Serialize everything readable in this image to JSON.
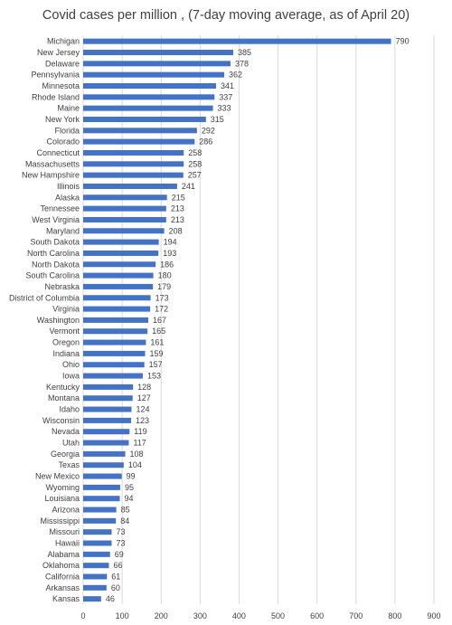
{
  "chart_data": {
    "type": "bar",
    "orientation": "horizontal",
    "title": "Covid cases per million , (7-day moving average, as of April 20)",
    "xlabel": "",
    "ylabel": "",
    "xlim": [
      0,
      900
    ],
    "xticks": [
      0,
      100,
      200,
      300,
      400,
      500,
      600,
      700,
      800,
      900
    ],
    "grid": "vertical",
    "bar_color": "#4472C4",
    "categories": [
      "Michigan",
      "New Jersey",
      "Delaware",
      "Pennsylvania",
      "Minnesota",
      "Rhode Island",
      "Maine",
      "New York",
      "Florida",
      "Colorado",
      "Connecticut",
      "Massachusetts",
      "New Hampshire",
      "Illinois",
      "Alaska",
      "Tennessee",
      "West Virginia",
      "Maryland",
      "South Dakota",
      "North Carolina",
      "North Dakota",
      "South Carolina",
      "Nebraska",
      "District of Columbia",
      "Virginia",
      "Washington",
      "Vermont",
      "Oregon",
      "Indiana",
      "Ohio",
      "Iowa",
      "Kentucky",
      "Montana",
      "Idaho",
      "Wisconsin",
      "Nevada",
      "Utah",
      "Georgia",
      "Texas",
      "New Mexico",
      "Wyoming",
      "Louisiana",
      "Arizona",
      "Mississippi",
      "Missouri",
      "Hawaii",
      "Alabama",
      "Oklahoma",
      "California",
      "Arkansas",
      "Kansas"
    ],
    "values": [
      790,
      385,
      378,
      362,
      341,
      337,
      333,
      315,
      292,
      286,
      258,
      258,
      257,
      241,
      215,
      213,
      213,
      208,
      194,
      193,
      186,
      180,
      179,
      173,
      172,
      167,
      165,
      161,
      159,
      157,
      153,
      128,
      127,
      124,
      123,
      119,
      117,
      108,
      104,
      99,
      95,
      94,
      85,
      84,
      73,
      73,
      69,
      66,
      61,
      60,
      46
    ]
  }
}
